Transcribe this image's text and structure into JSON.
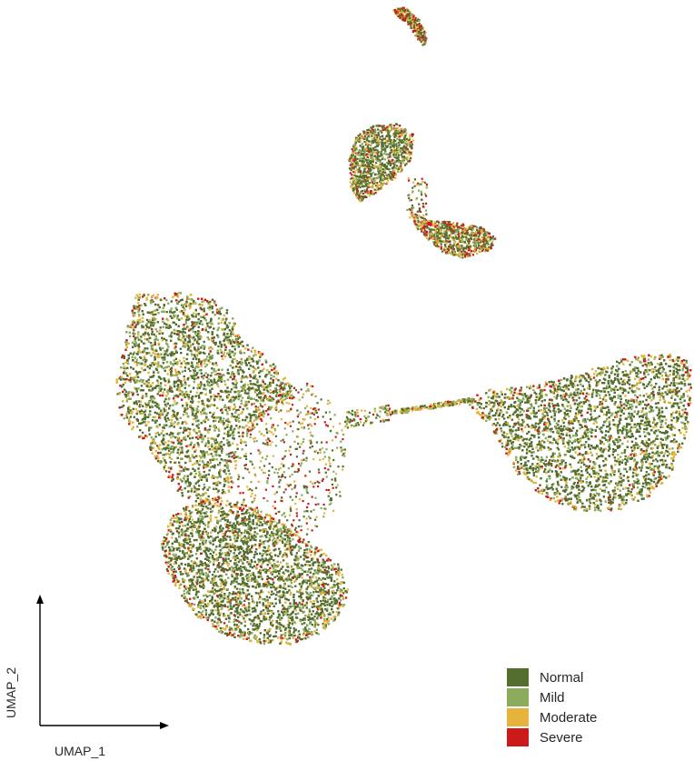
{
  "chart_data": {
    "type": "scatter",
    "title": "",
    "xlabel": "UMAP_1",
    "ylabel": "UMAP_2",
    "grid": false,
    "legend_position": "bottom-right",
    "series": [
      {
        "name": "Normal",
        "color": "#546e2f"
      },
      {
        "name": "Mild",
        "color": "#8cac5d"
      },
      {
        "name": "Moderate",
        "color": "#e6b33c"
      },
      {
        "name": "Severe",
        "color": "#cc1a1a"
      }
    ],
    "clusters": [
      {
        "id": "top-small-arc"
      },
      {
        "id": "upper-triangle"
      },
      {
        "id": "upper-strip"
      },
      {
        "id": "left-upper-lobe"
      },
      {
        "id": "left-lower-lobe"
      },
      {
        "id": "bridge-scatter"
      },
      {
        "id": "right-lobe"
      }
    ]
  }
}
